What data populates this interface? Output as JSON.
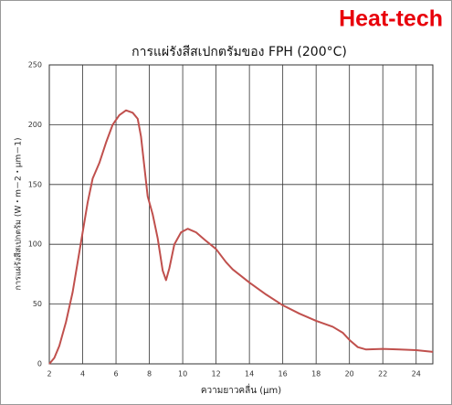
{
  "brand": "Heat-tech",
  "chart_data": {
    "type": "line",
    "title": "การแผ่รังสีสเปกตรัมของ FPH (200°C)",
    "x_label": "ความยาวคลื่น (μm)",
    "y_label": "การแผ่รังสีสเปกตรัม (W・m－2・μm－1)",
    "xlim": [
      2,
      25
    ],
    "xticks": [
      2,
      4,
      6,
      8,
      10,
      12,
      14,
      16,
      18,
      20,
      22,
      24
    ],
    "ylim": [
      0,
      250
    ],
    "yticks": [
      0,
      50,
      100,
      150,
      200,
      250
    ],
    "grid": true,
    "x": [
      2,
      2.3,
      2.6,
      3.0,
      3.4,
      3.7,
      4.0,
      4.3,
      4.6,
      5.0,
      5.4,
      5.8,
      6.2,
      6.6,
      7.0,
      7.3,
      7.5,
      7.7,
      7.9,
      8.2,
      8.5,
      8.8,
      9.0,
      9.2,
      9.5,
      9.9,
      10.3,
      10.8,
      11.3,
      12.0,
      12.6,
      13.0,
      14.0,
      15.0,
      16.0,
      17.0,
      18.0,
      19.0,
      19.6,
      20.0,
      20.5,
      21.0,
      22.0,
      23.0,
      24.0,
      25.0
    ],
    "series": [
      {
        "color": "#c0504d",
        "values": [
          0,
          5,
          15,
          35,
          60,
          85,
          110,
          135,
          155,
          168,
          185,
          200,
          208,
          212,
          210,
          205,
          190,
          165,
          140,
          125,
          105,
          78,
          70,
          80,
          100,
          110,
          113,
          110,
          104,
          96,
          85,
          79,
          68,
          58,
          49,
          42,
          36,
          31,
          26,
          20,
          14,
          12,
          12.5,
          12,
          11.5,
          10
        ]
      }
    ]
  }
}
